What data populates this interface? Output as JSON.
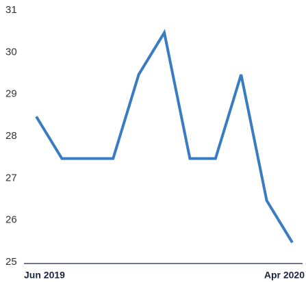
{
  "chart_data": {
    "type": "line",
    "categories": [
      "Jun 2019",
      null,
      null,
      null,
      null,
      null,
      null,
      null,
      null,
      null,
      "Apr 2020"
    ],
    "series": [
      {
        "color": "#3a7cc1",
        "values": [
          28.5,
          27.5,
          27.5,
          27.5,
          29.5,
          30.5,
          27.5,
          27.5,
          29.5,
          26.5,
          25.5
        ]
      }
    ],
    "ylim": [
      25,
      31
    ],
    "yticks": [
      25,
      26,
      27,
      28,
      29,
      30,
      31
    ],
    "grid": false
  }
}
